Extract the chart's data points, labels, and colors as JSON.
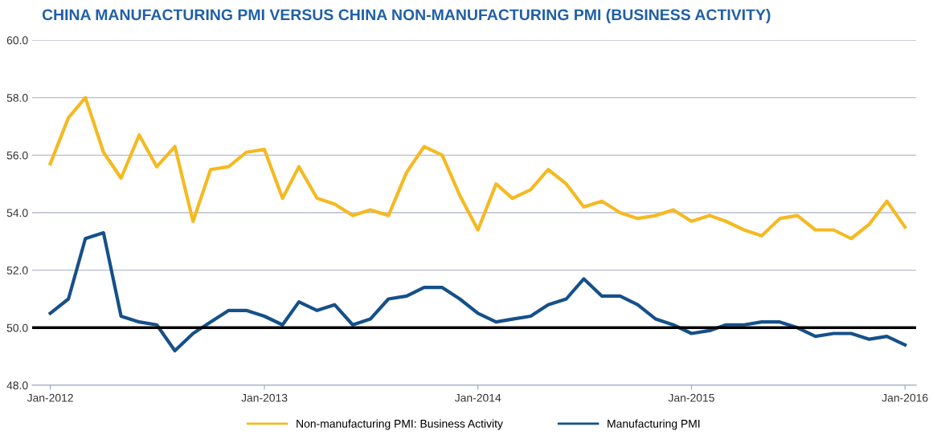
{
  "chart_data": {
    "type": "line",
    "title": "CHINA MANUFACTURING PMI VERSUS CHINA NON-MANUFACTURING PMI (BUSINESS ACTIVITY)",
    "x": [
      "2012-01",
      "2012-02",
      "2012-03",
      "2012-04",
      "2012-05",
      "2012-06",
      "2012-07",
      "2012-08",
      "2012-09",
      "2012-10",
      "2012-11",
      "2012-12",
      "2013-01",
      "2013-02",
      "2013-03",
      "2013-04",
      "2013-05",
      "2013-06",
      "2013-07",
      "2013-08",
      "2013-09",
      "2013-10",
      "2013-11",
      "2013-12",
      "2014-01",
      "2014-02",
      "2014-03",
      "2014-04",
      "2014-05",
      "2014-06",
      "2014-07",
      "2014-08",
      "2014-09",
      "2014-10",
      "2014-11",
      "2014-12",
      "2015-01",
      "2015-02",
      "2015-03",
      "2015-04",
      "2015-05",
      "2015-06",
      "2015-07",
      "2015-08",
      "2015-09",
      "2015-10",
      "2015-11",
      "2015-12",
      "2016-01"
    ],
    "series": [
      {
        "name": "Non-manufacturing PMI: Business Activity",
        "color": "#f5b921",
        "values": [
          55.7,
          57.3,
          58.0,
          56.1,
          55.2,
          56.7,
          55.6,
          56.3,
          53.7,
          55.5,
          55.6,
          56.1,
          56.2,
          54.5,
          55.6,
          54.5,
          54.3,
          53.9,
          54.1,
          53.9,
          55.4,
          56.3,
          56.0,
          54.6,
          53.4,
          55.0,
          54.5,
          54.8,
          55.5,
          55.0,
          54.2,
          54.4,
          54.0,
          53.8,
          53.9,
          54.1,
          53.7,
          53.9,
          53.7,
          53.4,
          53.2,
          53.8,
          53.9,
          53.4,
          53.4,
          53.1,
          53.6,
          54.4,
          53.5
        ]
      },
      {
        "name": "Manufacturing PMI",
        "color": "#15508a",
        "values": [
          50.5,
          51.0,
          53.1,
          53.3,
          50.4,
          50.2,
          50.1,
          49.2,
          49.8,
          50.2,
          50.6,
          50.6,
          50.4,
          50.1,
          50.9,
          50.6,
          50.8,
          50.1,
          50.3,
          51.0,
          51.1,
          51.4,
          51.4,
          51.0,
          50.5,
          50.2,
          50.3,
          50.4,
          50.8,
          51.0,
          51.7,
          51.1,
          51.1,
          50.8,
          50.3,
          50.1,
          49.8,
          49.9,
          50.1,
          50.1,
          50.2,
          50.2,
          50.0,
          49.7,
          49.8,
          49.8,
          49.6,
          49.7,
          49.4
        ]
      }
    ],
    "xlim": [
      "2011-12-01",
      "2016-01-20"
    ],
    "xticks": [
      {
        "value": "2012-01",
        "label": "Jan-2012"
      },
      {
        "value": "2013-01",
        "label": "Jan-2013"
      },
      {
        "value": "2014-01",
        "label": "Jan-2014"
      },
      {
        "value": "2015-01",
        "label": "Jan-2015"
      },
      {
        "value": "2016-01",
        "label": "Jan-2016"
      }
    ],
    "ylim": [
      48,
      60
    ],
    "yticks": [
      {
        "value": 48,
        "label": "48.0"
      },
      {
        "value": 50,
        "label": "50.0"
      },
      {
        "value": 52,
        "label": "52.0"
      },
      {
        "value": 54,
        "label": "54.0"
      },
      {
        "value": 56,
        "label": "56.0"
      },
      {
        "value": 58,
        "label": "58.0"
      },
      {
        "value": 60,
        "label": "60.0"
      }
    ],
    "ref_lines": [
      {
        "axis": "y",
        "value": 50,
        "label": null,
        "color": "#000000"
      }
    ],
    "grid": "y",
    "legend": "bottom",
    "marker": "none",
    "line_style": "solid"
  }
}
